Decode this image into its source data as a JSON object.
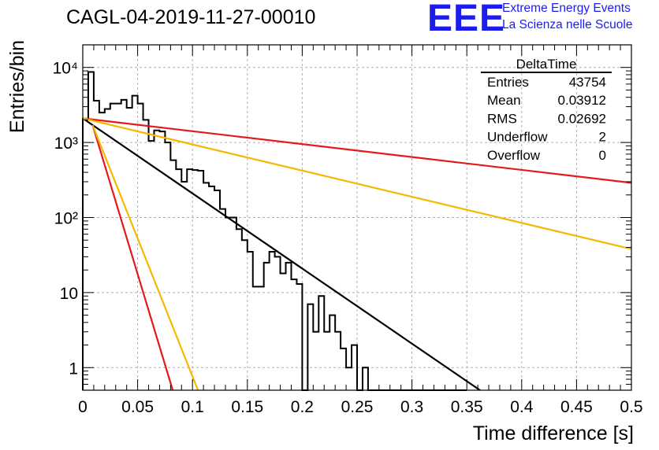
{
  "header": {
    "run_title": "CAGL-04-2019-11-27-00010",
    "logo_text": "EEE",
    "logo_line1": "Extreme Energy Events",
    "logo_line2": "La Scienza nelle Scuole"
  },
  "chart_data": {
    "type": "histogram",
    "title": "CAGL-04-2019-11-27-00010",
    "xlabel": "Time difference [s]",
    "ylabel": "Entries/bin",
    "xlim": [
      0,
      0.5
    ],
    "ylim": [
      0.5,
      20000
    ],
    "yscale": "log",
    "grid": true,
    "x_ticks": [
      0,
      0.05,
      0.1,
      0.15,
      0.2,
      0.25,
      0.3,
      0.35,
      0.4,
      0.45,
      0.5
    ],
    "x_tick_labels": [
      "0",
      "0.05",
      "0.1",
      "0.15",
      "0.2",
      "0.25",
      "0.3",
      "0.35",
      "0.4",
      "0.45",
      "0.5"
    ],
    "y_ticks": [
      1,
      10,
      100,
      1000,
      10000
    ],
    "y_tick_labels": [
      "1",
      "10",
      "10²",
      "10³",
      "10⁴"
    ],
    "bin_width": 0.005,
    "histogram": {
      "color": "#000000",
      "counts": [
        2050,
        8700,
        3600,
        2500,
        2800,
        3300,
        3300,
        3700,
        2900,
        4200,
        3300,
        2000,
        1050,
        1450,
        1400,
        1000,
        580,
        440,
        300,
        440,
        430,
        420,
        290,
        260,
        230,
        130,
        100,
        100,
        70,
        50,
        35,
        12,
        12,
        25,
        35,
        30,
        18,
        25,
        15,
        13,
        0,
        7,
        3,
        9,
        3,
        5,
        3,
        1.8,
        1,
        2,
        0,
        1,
        0.5,
        0.5,
        0.5,
        0.5,
        0.5,
        0.5,
        0.5,
        0.5,
        0.5,
        0.5,
        0.5,
        0.5,
        0.5,
        0.5,
        0.5,
        0.5,
        0.5,
        0.5
      ]
    },
    "series": [
      {
        "color": "#000000",
        "x": [
          0,
          0.362
        ],
        "y": [
          2100,
          0.5
        ]
      },
      {
        "color": "#e41a1a",
        "x": [
          0,
          0.5
        ],
        "y": [
          2100,
          290
        ]
      },
      {
        "color": "#f5b800",
        "x": [
          0,
          0.5
        ],
        "y": [
          2100,
          38
        ]
      },
      {
        "color": "#e41a1a",
        "x": [
          0.009,
          0.082
        ],
        "y": [
          1700,
          0.5
        ]
      },
      {
        "color": "#f5b800",
        "x": [
          0.009,
          0.105
        ],
        "y": [
          1700,
          0.5
        ]
      }
    ],
    "stats": {
      "name": "DeltaTime",
      "rows": [
        {
          "label": "Entries",
          "value": "43754"
        },
        {
          "label": "Mean",
          "value": "0.03912"
        },
        {
          "label": "RMS",
          "value": "0.02692"
        },
        {
          "label": "Underflow",
          "value": "2"
        },
        {
          "label": "Overflow",
          "value": "0"
        }
      ]
    }
  }
}
